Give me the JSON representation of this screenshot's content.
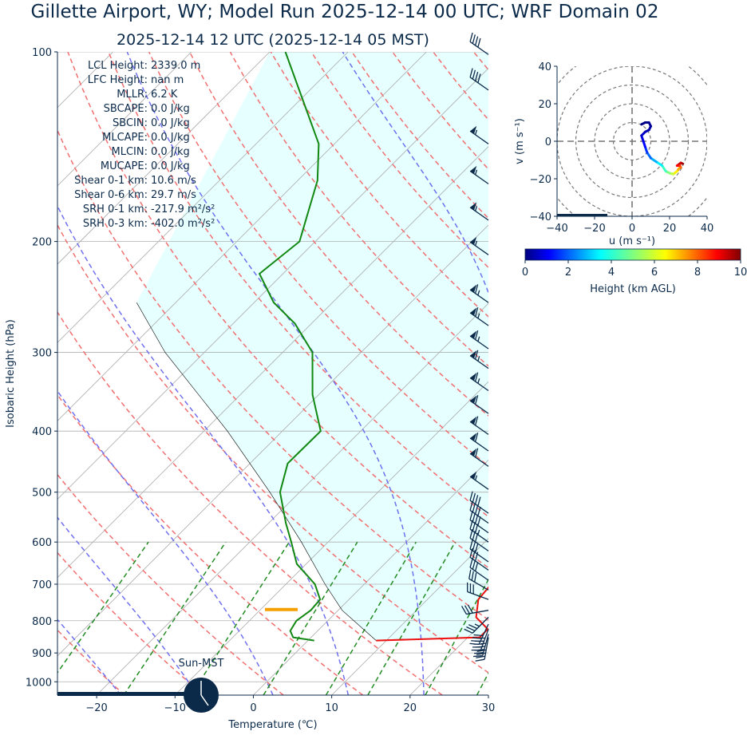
{
  "title_main": "Gillette  Airport, WY; Model Run 2025-12-14 00 UTC; WRF Domain 02",
  "title_sub": "2025-12-14 12 UTC  (2025-12-14 05 MST)",
  "sun_label": "Sun-MST",
  "colors": {
    "temperature": "#ee1111",
    "dewpoint": "#118811",
    "dry_adiabat": "#f07070",
    "moist_adiabat": "#7070ee",
    "mixing_ratio": "#228B22",
    "isotherm": "#aaaaaa",
    "cape_fill": "#e6ffff",
    "barb": "#0b2a4a",
    "lcl_marker": "#f5a000"
  },
  "stats": [
    "LCL Height: 2339.0 m",
    "LFC Height: nan m",
    "MLLR: 6.2 K",
    "SBCAPE: 0.0 J/kg",
    "SBCIN: 0.0 J/kg",
    "MLCAPE: 0.0 J/kg",
    "MLCIN: 0.0 J/kg",
    "MUCAPE: 0.0 J/kg",
    "Shear 0-1 km: 10.6 m/s",
    "Shear 0-6 km: 29.7 m/s",
    "SRH 0-1 km: -217.9 m²/s²",
    "SRH 0-3 km: -402.0 m²/s²"
  ],
  "chart_data": [
    {
      "type": "line",
      "subtype": "skew-T log-p sounding",
      "xlabel": "Temperature (℃)",
      "ylabel": "Isobaric Height (hPa)",
      "xlim": [
        -25,
        30
      ],
      "ylim": [
        1050,
        100
      ],
      "y_scale": "log",
      "skew": "45 degrees",
      "x_ticks": [
        -20,
        -10,
        0,
        10,
        20,
        30
      ],
      "x_tick_labels": [
        "−20",
        "−10",
        "0",
        "10",
        "20",
        "30"
      ],
      "y_ticks": [
        100,
        200,
        300,
        400,
        500,
        600,
        700,
        800,
        900,
        1000
      ],
      "y_tick_labels": [
        "100",
        "200",
        "300",
        "400",
        "500",
        "600",
        "700",
        "800",
        "900",
        "1000"
      ],
      "grid": "horizontal isobars",
      "temperature": [
        {
          "p": 860,
          "t": 8.7
        },
        {
          "p": 850,
          "t": 21.5
        },
        {
          "p": 825,
          "t": 21.5
        },
        {
          "p": 790,
          "t": 18.5
        },
        {
          "p": 740,
          "t": 16.5
        },
        {
          "p": 700,
          "t": 16.2
        },
        {
          "p": 650,
          "t": 16.5
        },
        {
          "p": 600,
          "t": 16.0
        },
        {
          "p": 550,
          "t": 14.0
        },
        {
          "p": 500,
          "t": 10.8
        },
        {
          "p": 450,
          "t": 6.6
        },
        {
          "p": 400,
          "t": 2.0
        },
        {
          "p": 350,
          "t": -2.7
        },
        {
          "p": 320,
          "t": -6.3
        },
        {
          "p": 300,
          "t": -8.4
        },
        {
          "p": 270,
          "t": -12.8
        },
        {
          "p": 240,
          "t": -17.5
        },
        {
          "p": 220,
          "t": -20.8
        },
        {
          "p": 200,
          "t": -23.4
        },
        {
          "p": 185,
          "t": -25.0
        },
        {
          "p": 160,
          "t": -28.0
        },
        {
          "p": 140,
          "t": -33.6
        },
        {
          "p": 120,
          "t": -40.2
        },
        {
          "p": 100,
          "t": -47.2
        }
      ],
      "dewpoint": [
        {
          "p": 860,
          "t": 0.8
        },
        {
          "p": 850,
          "t": -2.3
        },
        {
          "p": 830,
          "t": -3.5
        },
        {
          "p": 800,
          "t": -4.0
        },
        {
          "p": 770,
          "t": -3.5
        },
        {
          "p": 740,
          "t": -3.7
        },
        {
          "p": 700,
          "t": -6.3
        },
        {
          "p": 650,
          "t": -11.2
        },
        {
          "p": 600,
          "t": -14.7
        },
        {
          "p": 560,
          "t": -17.8
        },
        {
          "p": 500,
          "t": -22.5
        },
        {
          "p": 450,
          "t": -25.2
        },
        {
          "p": 400,
          "t": -25.1
        },
        {
          "p": 350,
          "t": -30.8
        },
        {
          "p": 300,
          "t": -36.2
        },
        {
          "p": 270,
          "t": -42.1
        },
        {
          "p": 250,
          "t": -47.5
        },
        {
          "p": 225,
          "t": -53.0
        },
        {
          "p": 200,
          "t": -52.0
        },
        {
          "p": 160,
          "t": -57.5
        },
        {
          "p": 140,
          "t": -62.0
        },
        {
          "p": 100,
          "t": -78.0
        }
      ],
      "parcel_profile": [
        {
          "p": 860,
          "t": 8.7
        },
        {
          "p": 770,
          "t": 0.5
        },
        {
          "p": 700,
          "t": -5.0
        },
        {
          "p": 600,
          "t": -13.4
        },
        {
          "p": 500,
          "t": -23.8
        },
        {
          "p": 400,
          "t": -37.0
        },
        {
          "p": 300,
          "t": -55.0
        },
        {
          "p": 250,
          "t": -65.0
        }
      ],
      "lcl_pressure": 768,
      "dry_adiabats_theta_c": [
        -20,
        -10,
        0,
        10,
        20,
        30,
        40,
        50,
        60,
        70,
        80,
        90,
        100,
        110,
        120,
        130,
        140,
        150,
        160,
        170
      ],
      "moist_adiabats_start_t": [
        -20,
        -10,
        0,
        10,
        20,
        30,
        40
      ],
      "mixing_ratio_lines_gkg": [
        0.4,
        1,
        2,
        4,
        7,
        10,
        16,
        24,
        32
      ],
      "wind_barbs_kt": [
        {
          "p": 850,
          "spd": 40,
          "dir": 190
        },
        {
          "p": 840,
          "spd": 45,
          "dir": 195
        },
        {
          "p": 825,
          "spd": 45,
          "dir": 200
        },
        {
          "p": 810,
          "spd": 40,
          "dir": 205
        },
        {
          "p": 790,
          "spd": 35,
          "dir": 225
        },
        {
          "p": 770,
          "spd": 30,
          "dir": 260
        },
        {
          "p": 740,
          "spd": 30,
          "dir": 290
        },
        {
          "p": 715,
          "spd": 30,
          "dir": 300
        },
        {
          "p": 690,
          "spd": 30,
          "dir": 305
        },
        {
          "p": 665,
          "spd": 30,
          "dir": 305
        },
        {
          "p": 645,
          "spd": 30,
          "dir": 305
        },
        {
          "p": 620,
          "spd": 30,
          "dir": 305
        },
        {
          "p": 600,
          "spd": 35,
          "dir": 305
        },
        {
          "p": 580,
          "spd": 40,
          "dir": 305
        },
        {
          "p": 560,
          "spd": 40,
          "dir": 305
        },
        {
          "p": 540,
          "spd": 40,
          "dir": 305
        },
        {
          "p": 495,
          "spd": 55,
          "dir": 305
        },
        {
          "p": 455,
          "spd": 60,
          "dir": 305
        },
        {
          "p": 430,
          "spd": 60,
          "dir": 305
        },
        {
          "p": 405,
          "spd": 60,
          "dir": 305
        },
        {
          "p": 375,
          "spd": 60,
          "dir": 305
        },
        {
          "p": 345,
          "spd": 65,
          "dir": 305
        },
        {
          "p": 318,
          "spd": 65,
          "dir": 305
        },
        {
          "p": 296,
          "spd": 65,
          "dir": 305
        },
        {
          "p": 272,
          "spd": 65,
          "dir": 305
        },
        {
          "p": 250,
          "spd": 65,
          "dir": 305
        },
        {
          "p": 210,
          "spd": 55,
          "dir": 305
        },
        {
          "p": 185,
          "spd": 55,
          "dir": 305
        },
        {
          "p": 162,
          "spd": 55,
          "dir": 305
        },
        {
          "p": 140,
          "spd": 55,
          "dir": 305
        },
        {
          "p": 115,
          "spd": 40,
          "dir": 305
        },
        {
          "p": 101,
          "spd": 40,
          "dir": 305
        }
      ]
    },
    {
      "type": "line",
      "subtype": "hodograph",
      "xlabel": "u (m s⁻¹)",
      "ylabel": "v (m s⁻¹)",
      "xlim": [
        -40,
        40
      ],
      "ylim": [
        -40,
        40
      ],
      "x_ticks": [
        -40,
        -20,
        0,
        20,
        40
      ],
      "x_tick_labels": [
        "−40",
        "−20",
        "0",
        "20",
        "40"
      ],
      "y_ticks": [
        -40,
        -20,
        0,
        20,
        40
      ],
      "y_tick_labels": [
        "−40",
        "−20",
        "0",
        "20",
        "40"
      ],
      "rings": [
        10,
        20,
        30,
        40
      ],
      "points": [
        {
          "u": 27,
          "v": -12,
          "h": 9.9
        },
        {
          "u": 26,
          "v": -11.5,
          "h": 9.5
        },
        {
          "u": 24,
          "v": -13,
          "h": 9.0
        },
        {
          "u": 25.5,
          "v": -13,
          "h": 8.5
        },
        {
          "u": 26,
          "v": -14,
          "h": 8.0
        },
        {
          "u": 25,
          "v": -14.5,
          "h": 7.4
        },
        {
          "u": 24,
          "v": -16,
          "h": 6.8
        },
        {
          "u": 22,
          "v": -17.5,
          "h": 6.0
        },
        {
          "u": 20,
          "v": -17,
          "h": 5.3
        },
        {
          "u": 18,
          "v": -16,
          "h": 4.7
        },
        {
          "u": 16,
          "v": -13,
          "h": 4.0
        },
        {
          "u": 13,
          "v": -11,
          "h": 3.3
        },
        {
          "u": 10,
          "v": -9,
          "h": 2.6
        },
        {
          "u": 8,
          "v": -6,
          "h": 2.0
        },
        {
          "u": 7,
          "v": -3,
          "h": 1.5
        },
        {
          "u": 6,
          "v": 0,
          "h": 1.1
        },
        {
          "u": 5,
          "v": 3,
          "h": 0.8
        },
        {
          "u": 7,
          "v": 5,
          "h": 0.6
        },
        {
          "u": 9,
          "v": 6,
          "h": 0.45
        },
        {
          "u": 10,
          "v": 8,
          "h": 0.3
        },
        {
          "u": 9,
          "v": 10,
          "h": 0.2
        },
        {
          "u": 7,
          "v": 10,
          "h": 0.1
        },
        {
          "u": 5,
          "v": 9,
          "h": 0.05
        }
      ]
    },
    {
      "type": "heatmap",
      "subtype": "colorbar",
      "xlabel": "Height (km AGL)",
      "xlim": [
        0,
        10
      ],
      "x_ticks": [
        0,
        2,
        4,
        6,
        8,
        10
      ],
      "colormap": "jet"
    }
  ]
}
